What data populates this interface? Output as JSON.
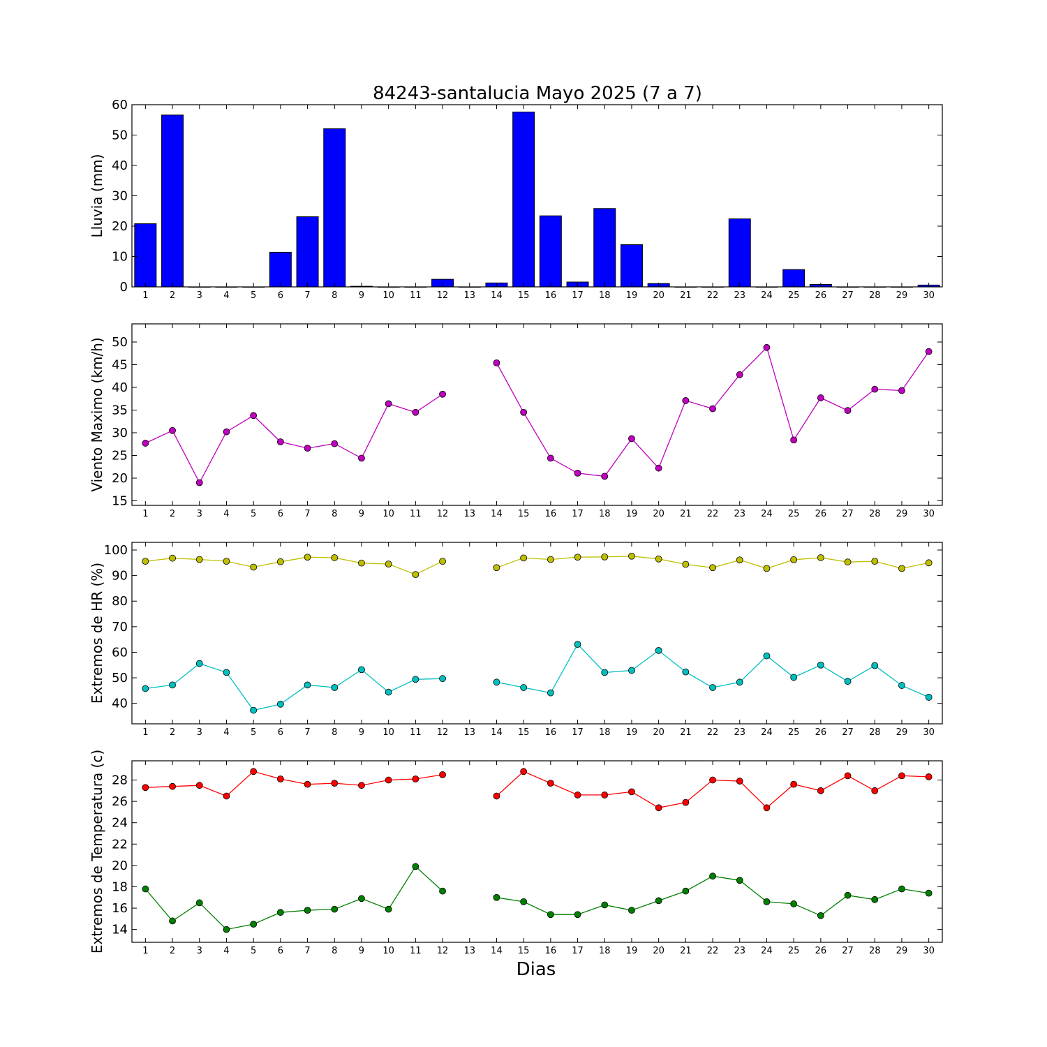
{
  "figure": {
    "title": "84243-santalucia Mayo 2025  (7 a 7)",
    "xlabel": "Dias"
  },
  "chart_data": [
    {
      "type": "bar",
      "ylabel": "Lluvia (mm)",
      "ylim": [
        0,
        60
      ],
      "yticks": [
        0,
        10,
        20,
        30,
        40,
        50,
        60
      ],
      "xlim": [
        0.5,
        30.5
      ],
      "x": [
        1,
        2,
        3,
        4,
        5,
        6,
        7,
        8,
        9,
        10,
        11,
        12,
        13,
        14,
        15,
        16,
        17,
        18,
        19,
        20,
        21,
        22,
        23,
        24,
        25,
        26,
        27,
        28,
        29,
        30
      ],
      "series": [
        {
          "color": "#0000ff",
          "values": [
            20.8,
            56.6,
            0,
            0,
            0,
            11.4,
            23.1,
            52.1,
            0.2,
            0,
            0,
            2.5,
            0,
            1.3,
            57.6,
            23.4,
            1.6,
            25.8,
            13.9,
            1.1,
            0,
            0,
            22.4,
            0,
            5.7,
            0.8,
            0,
            0,
            0,
            0.6
          ]
        }
      ],
      "grid": false
    },
    {
      "type": "line",
      "ylabel": "Viento Maximo (km/h)",
      "ylim": [
        14,
        54
      ],
      "yticks": [
        15,
        20,
        25,
        30,
        35,
        40,
        45,
        50
      ],
      "xlim": [
        0.5,
        30.5
      ],
      "x": [
        1,
        2,
        3,
        4,
        5,
        6,
        7,
        8,
        9,
        10,
        11,
        12,
        13,
        14,
        15,
        16,
        17,
        18,
        19,
        20,
        21,
        22,
        23,
        24,
        25,
        26,
        27,
        28,
        29,
        30
      ],
      "series": [
        {
          "color": "#bf00bf",
          "values": [
            27.7,
            30.5,
            19.0,
            30.2,
            33.8,
            28.0,
            26.6,
            27.6,
            24.4,
            36.4,
            34.5,
            38.5,
            null,
            45.4,
            34.5,
            24.4,
            21.1,
            20.4,
            28.7,
            22.2,
            37.1,
            35.3,
            42.8,
            48.8,
            28.4,
            37.7,
            34.9,
            39.6,
            39.3,
            47.9
          ]
        }
      ],
      "grid": false
    },
    {
      "type": "line",
      "ylabel": "Extremos de HR (%)",
      "ylim": [
        32,
        103
      ],
      "yticks": [
        40,
        50,
        60,
        70,
        80,
        90,
        100
      ],
      "xlim": [
        0.5,
        30.5
      ],
      "x": [
        1,
        2,
        3,
        4,
        5,
        6,
        7,
        8,
        9,
        10,
        11,
        12,
        13,
        14,
        15,
        16,
        17,
        18,
        19,
        20,
        21,
        22,
        23,
        24,
        25,
        26,
        27,
        28,
        29,
        30
      ],
      "series": [
        {
          "color": "#bfbf00",
          "values": [
            95.6,
            96.8,
            96.3,
            95.6,
            93.3,
            95.4,
            97.2,
            97.0,
            94.9,
            94.5,
            90.4,
            95.6,
            null,
            93.1,
            96.9,
            96.3,
            97.2,
            97.3,
            97.6,
            96.5,
            94.4,
            93.1,
            96.1,
            92.8,
            96.2,
            97.0,
            95.3,
            95.6,
            92.8,
            95.0
          ]
        },
        {
          "color": "#00bfbf",
          "values": [
            45.8,
            47.2,
            55.6,
            52.1,
            37.3,
            39.7,
            47.2,
            46.2,
            53.2,
            44.4,
            49.4,
            49.7,
            null,
            48.3,
            46.2,
            44.1,
            63.1,
            52.1,
            52.9,
            60.7,
            52.3,
            46.2,
            48.3,
            58.6,
            50.2,
            55.0,
            48.6,
            54.8,
            47.0,
            42.4
          ]
        }
      ],
      "grid": false
    },
    {
      "type": "line",
      "ylabel": "Extremos de Temperatura (c)",
      "ylim": [
        12.8,
        29.8
      ],
      "yticks": [
        14,
        16,
        18,
        20,
        22,
        24,
        26,
        28
      ],
      "xlim": [
        0.5,
        30.5
      ],
      "x": [
        1,
        2,
        3,
        4,
        5,
        6,
        7,
        8,
        9,
        10,
        11,
        12,
        13,
        14,
        15,
        16,
        17,
        18,
        19,
        20,
        21,
        22,
        23,
        24,
        25,
        26,
        27,
        28,
        29,
        30
      ],
      "series": [
        {
          "color": "#ff0000",
          "values": [
            27.3,
            27.4,
            27.5,
            26.5,
            28.8,
            28.1,
            27.6,
            27.7,
            27.5,
            28.0,
            28.1,
            28.5,
            null,
            26.5,
            28.8,
            27.7,
            26.6,
            26.6,
            26.9,
            25.4,
            25.9,
            28.0,
            27.9,
            25.4,
            27.6,
            27.0,
            28.4,
            27.0,
            28.4,
            28.3
          ]
        },
        {
          "color": "#007f00",
          "values": [
            17.8,
            14.8,
            16.5,
            14.0,
            14.5,
            15.6,
            15.8,
            15.9,
            16.9,
            15.9,
            19.9,
            17.6,
            null,
            17.0,
            16.6,
            15.4,
            15.4,
            16.3,
            15.8,
            16.7,
            17.6,
            19.0,
            18.6,
            16.6,
            16.4,
            15.3,
            17.2,
            16.8,
            17.8,
            17.4
          ]
        }
      ],
      "grid": false
    }
  ]
}
